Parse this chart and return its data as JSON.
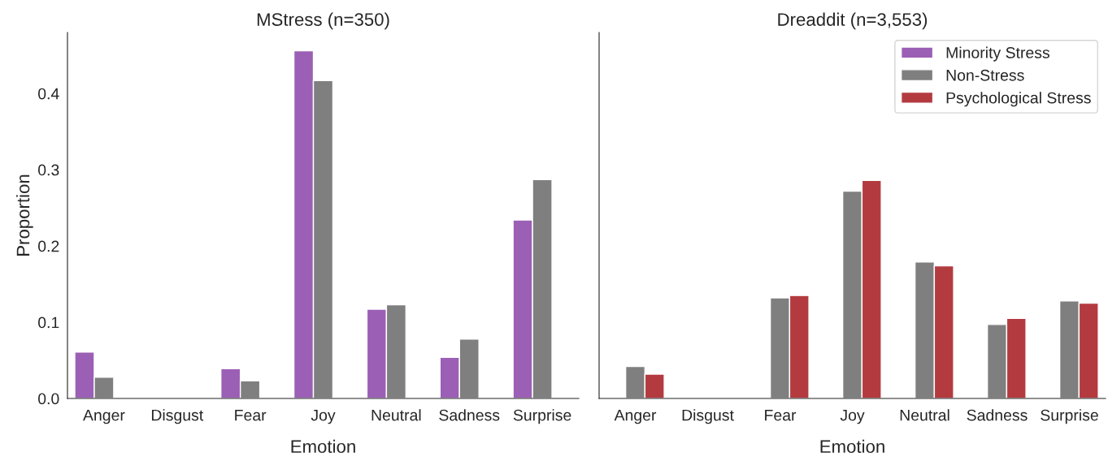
{
  "chart_data": [
    {
      "type": "bar",
      "title": "MStress (n=350)",
      "xlabel": "Emotion",
      "ylabel": "Proportion",
      "categories": [
        "Anger",
        "Disgust",
        "Fear",
        "Joy",
        "Neutral",
        "Sadness",
        "Surprise"
      ],
      "series": [
        {
          "color": "#9b5fb5",
          "values": [
            0.061,
            null,
            0.039,
            0.456,
            0.117,
            0.054,
            0.234
          ]
        },
        {
          "color": "#7f7f7f",
          "values": [
            0.028,
            null,
            0.023,
            0.417,
            0.123,
            0.078,
            0.287
          ]
        }
      ],
      "ylim": [
        0,
        0.48
      ],
      "yticks": [
        {
          "value": 0,
          "label": "0.0"
        },
        0.1,
        0.2,
        0.3,
        0.4
      ],
      "grid": false,
      "legend": false
    },
    {
      "type": "bar",
      "title": "Dreaddit (n=3,553)",
      "xlabel": "Emotion",
      "categories": [
        "Anger",
        "Disgust",
        "Fear",
        "Joy",
        "Neutral",
        "Sadness",
        "Surprise"
      ],
      "series": [
        {
          "name": "Minority Stress",
          "color": "#9b5fb5",
          "values": [
            null,
            null,
            null,
            null,
            null,
            null,
            null
          ]
        },
        {
          "name": "Non-Stress",
          "color": "#7f7f7f",
          "values": [
            0.042,
            null,
            0.132,
            0.272,
            0.179,
            0.097,
            0.128
          ]
        },
        {
          "name": "Psychological Stress",
          "color": "#b33b40",
          "values": [
            0.032,
            null,
            0.135,
            0.286,
            0.174,
            0.105,
            0.125
          ]
        }
      ],
      "ylim": [
        0,
        0.48
      ],
      "tick_labels": "x",
      "grid": false,
      "legend": "top right"
    }
  ]
}
